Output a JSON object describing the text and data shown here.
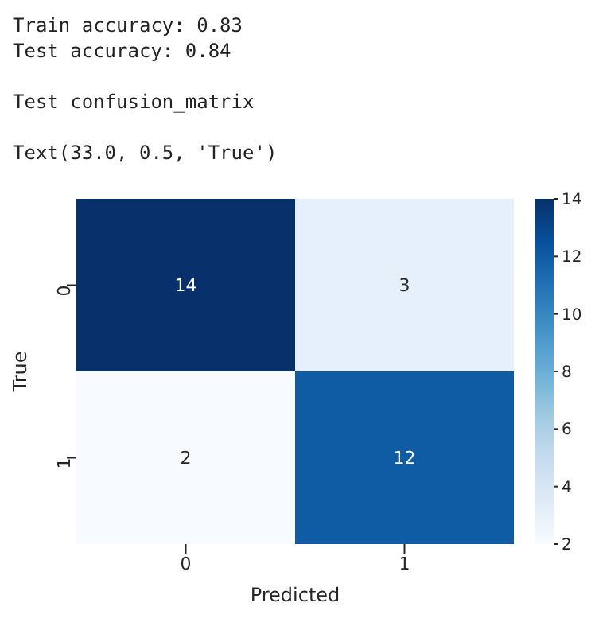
{
  "chart_data": {
    "type": "heatmap",
    "annotations": [
      "Train accuracy: 0.83",
      "Test accuracy: 0.84",
      "Test confusion_matrix",
      "Text(33.0, 0.5, 'True')"
    ],
    "xlabel": "Predicted",
    "ylabel": "True",
    "categories": [
      "0",
      "1"
    ],
    "y_categories": [
      "0",
      "1"
    ],
    "cells": [
      [
        14,
        3
      ],
      [
        2,
        12
      ]
    ],
    "data_labels": true,
    "clim": [
      2,
      14
    ],
    "cticks": [
      2,
      4,
      6,
      8,
      10,
      12,
      14
    ]
  }
}
